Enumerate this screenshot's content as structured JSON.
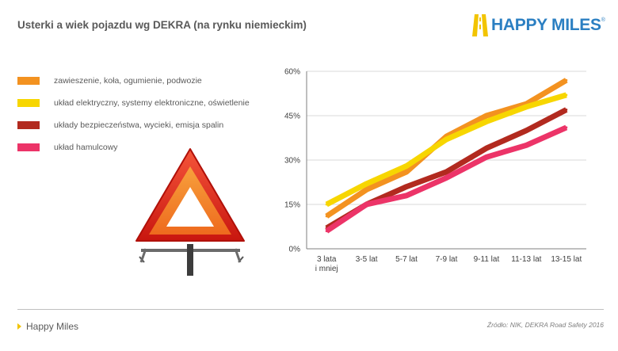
{
  "page": {
    "title": "Usterki a wiek pojazdu wg DEKRA (na rynku niemieckim)",
    "brand": "HAPPY MILES",
    "brand_mark": "®",
    "footer_left": "Happy Miles",
    "footer_right": "Źródło: NIK, DEKRA Road Safety 2016"
  },
  "colors": {
    "suspension": "#f39220",
    "electrical": "#f7d600",
    "safety": "#b22a1f",
    "brakes": "#ec3468",
    "brand": "#2b7fc2",
    "grid": "#d9d9d9"
  },
  "icons": [
    "road-logo-icon",
    "warning-triangle-icon"
  ],
  "chart_data": {
    "type": "line",
    "title": "Usterki a wiek pojazdu wg DEKRA (na rynku niemieckim)",
    "xlabel": "",
    "ylabel": "",
    "categories": [
      "3 lata i mniej",
      "3-5 lat",
      "5-7 lat",
      "7-9 lat",
      "9-11 lat",
      "11-13 lat",
      "13-15 lat"
    ],
    "y_ticks": [
      "0%",
      "15%",
      "30%",
      "45%",
      "60%"
    ],
    "ylim": [
      0,
      60
    ],
    "grid": true,
    "legend_position": "left",
    "series": [
      {
        "name": "zawieszenie, koła, ogumienie, podwozie",
        "color": "#f39220",
        "values": [
          11,
          20,
          26,
          38,
          45,
          49,
          57
        ]
      },
      {
        "name": "układ elektryczny, systemy elektroniczne, oświetlenie",
        "color": "#f7d600",
        "values": [
          15,
          22,
          28,
          37,
          43,
          48,
          52
        ]
      },
      {
        "name": "układy bezpieczeństwa, wycieki, emisja spalin",
        "color": "#b22a1f",
        "values": [
          7,
          15,
          21,
          26,
          34,
          40,
          47
        ]
      },
      {
        "name": "układ hamulcowy",
        "color": "#ec3468",
        "values": [
          6,
          15,
          18,
          24,
          31,
          35,
          41
        ]
      }
    ]
  }
}
